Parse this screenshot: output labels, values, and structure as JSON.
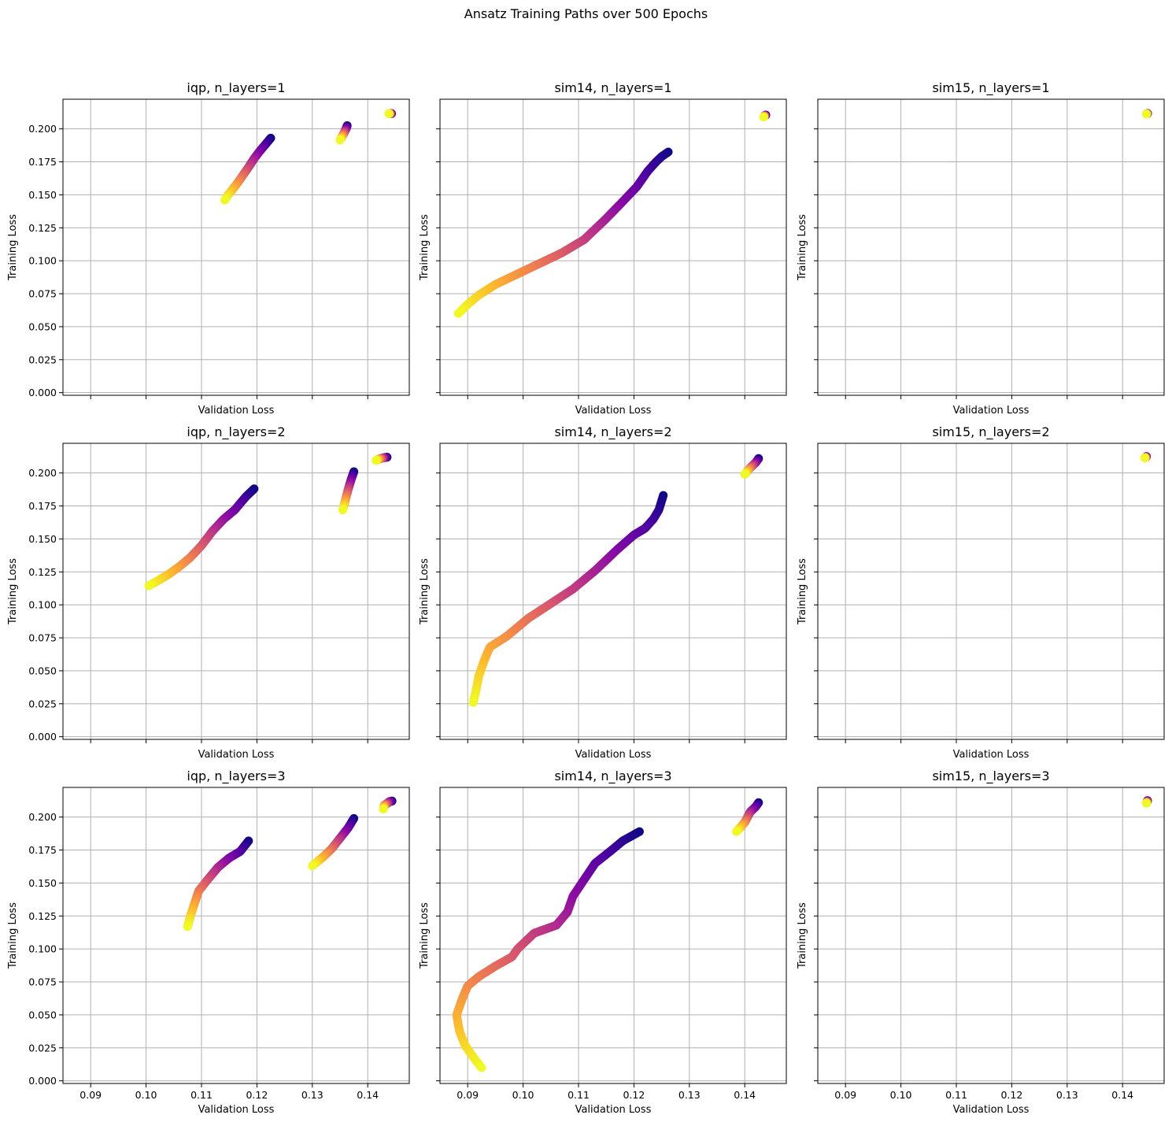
{
  "figure": {
    "suptitle": "Ansatz Training Paths over 500 Epochs"
  },
  "chart_data": {
    "type": "scatter",
    "shared": {
      "xlabel": "Validation Loss",
      "ylabel": "Training Loss",
      "xlim": [
        0.085,
        0.1475
      ],
      "ylim": [
        -0.002,
        0.2225
      ],
      "xticks": [
        0.09,
        0.1,
        0.11,
        0.12,
        0.13,
        0.14
      ],
      "xtick_labels": [
        "0.09",
        "0.10",
        "0.11",
        "0.12",
        "0.13",
        "0.14"
      ],
      "yticks": [
        0.0,
        0.025,
        0.05,
        0.075,
        0.1,
        0.125,
        0.15,
        0.175,
        0.2
      ],
      "ytick_labels": [
        "0.000",
        "0.025",
        "0.050",
        "0.075",
        "0.100",
        "0.125",
        "0.150",
        "0.175",
        "0.200"
      ],
      "grid": true,
      "colormap": "plasma",
      "color_encodes": "epoch (dark purple = early, yellow = late)",
      "shared_axes": true
    },
    "subplots": [
      {
        "title": "iqp, n_layers=1",
        "paths": [
          {
            "x": [
              0.1443,
              0.1441,
              0.1438
            ],
            "y": [
              0.2116,
              0.2116,
              0.2115
            ]
          },
          {
            "x": [
              0.1363,
              0.1361,
              0.1358,
              0.1354,
              0.135
            ],
            "y": [
              0.2025,
              0.2002,
              0.1975,
              0.1945,
              0.1915
            ]
          },
          {
            "x": [
              0.1225,
              0.1215,
              0.1205,
              0.1195,
              0.1185,
              0.1175,
              0.1165,
              0.1155,
              0.1148,
              0.1142
            ],
            "y": [
              0.193,
              0.188,
              0.183,
              0.1775,
              0.171,
              0.165,
              0.159,
              0.1535,
              0.15,
              0.146
            ]
          }
        ]
      },
      {
        "title": "sim14, n_layers=1",
        "paths": [
          {
            "x": [
              0.1438,
              0.1436,
              0.1434
            ],
            "y": [
              0.2105,
              0.21,
              0.209
            ]
          },
          {
            "x": [
              0.1262,
              0.125,
              0.124,
              0.1225,
              0.1205,
              0.118,
              0.115,
              0.111,
              0.107,
              0.103,
              0.099,
              0.095,
              0.092,
              0.09,
              0.0883
            ],
            "y": [
              0.1825,
              0.179,
              0.175,
              0.168,
              0.156,
              0.145,
              0.132,
              0.116,
              0.106,
              0.098,
              0.09,
              0.082,
              0.074,
              0.067,
              0.06
            ]
          }
        ]
      },
      {
        "title": "sim15, n_layers=1",
        "paths": [
          {
            "x": [
              0.1445,
              0.1444,
              0.1443
            ],
            "y": [
              0.2117,
              0.2115,
              0.2113
            ]
          }
        ]
      },
      {
        "title": "iqp, n_layers=2",
        "paths": [
          {
            "x": [
              0.1435,
              0.1428,
              0.142,
              0.1415
            ],
            "y": [
              0.212,
              0.2115,
              0.2105,
              0.2095
            ]
          },
          {
            "x": [
              0.1375,
              0.137,
              0.1365,
              0.136,
              0.1355
            ],
            "y": [
              0.201,
              0.195,
              0.188,
              0.18,
              0.172
            ]
          },
          {
            "x": [
              0.1195,
              0.118,
              0.116,
              0.114,
              0.112,
              0.11,
              0.108,
              0.106,
              0.104,
              0.102,
              0.1005
            ],
            "y": [
              0.188,
              0.182,
              0.172,
              0.165,
              0.156,
              0.145,
              0.136,
              0.129,
              0.123,
              0.118,
              0.1145
            ]
          }
        ]
      },
      {
        "title": "sim14, n_layers=2",
        "paths": [
          {
            "x": [
              0.1425,
              0.142,
              0.141,
              0.14
            ],
            "y": [
              0.211,
              0.208,
              0.204,
              0.199
            ]
          },
          {
            "x": [
              0.1253,
              0.1245,
              0.1235,
              0.122,
              0.12,
              0.117,
              0.113,
              0.109,
              0.105,
              0.101,
              0.097,
              0.094,
              0.093,
              0.092,
              0.0915,
              0.091
            ],
            "y": [
              0.183,
              0.172,
              0.165,
              0.158,
              0.153,
              0.142,
              0.126,
              0.112,
              0.101,
              0.09,
              0.076,
              0.068,
              0.058,
              0.046,
              0.035,
              0.026
            ]
          }
        ]
      },
      {
        "title": "sim15, n_layers=2",
        "paths": [
          {
            "x": [
              0.1443,
              0.1442,
              0.144
            ],
            "y": [
              0.2125,
              0.212,
              0.2115
            ]
          }
        ]
      },
      {
        "title": "iqp, n_layers=3",
        "paths": [
          {
            "x": [
              0.1444,
              0.144,
              0.143,
              0.1428
            ],
            "y": [
              0.2122,
              0.2118,
              0.209,
              0.206
            ]
          },
          {
            "x": [
              0.1375,
              0.1365,
              0.135,
              0.1335,
              0.132,
              0.13
            ],
            "y": [
              0.199,
              0.192,
              0.184,
              0.176,
              0.17,
              0.163
            ]
          },
          {
            "x": [
              0.1185,
              0.117,
              0.115,
              0.113,
              0.111,
              0.1095,
              0.1087,
              0.108,
              0.1075
            ],
            "y": [
              0.182,
              0.174,
              0.169,
              0.162,
              0.152,
              0.144,
              0.134,
              0.125,
              0.117
            ]
          }
        ]
      },
      {
        "title": "sim14, n_layers=3",
        "paths": [
          {
            "x": [
              0.1425,
              0.142,
              0.141,
              0.14,
              0.1385
            ],
            "y": [
              0.211,
              0.208,
              0.204,
              0.196,
              0.189
            ]
          },
          {
            "x": [
              0.121,
              0.118,
              0.116,
              0.113,
              0.109,
              0.108,
              0.106,
              0.102,
              0.099,
              0.098,
              0.095,
              0.092,
              0.09,
              0.089,
              0.088,
              0.0885,
              0.0895,
              0.091,
              0.0925
            ],
            "y": [
              0.189,
              0.182,
              0.175,
              0.165,
              0.14,
              0.128,
              0.118,
              0.112,
              0.1,
              0.094,
              0.087,
              0.079,
              0.072,
              0.062,
              0.05,
              0.038,
              0.027,
              0.018,
              0.01
            ]
          }
        ]
      },
      {
        "title": "sim15, n_layers=3",
        "paths": [
          {
            "x": [
              0.1445,
              0.1444,
              0.1443
            ],
            "y": [
              0.2125,
              0.2115,
              0.2105
            ]
          }
        ]
      }
    ]
  }
}
